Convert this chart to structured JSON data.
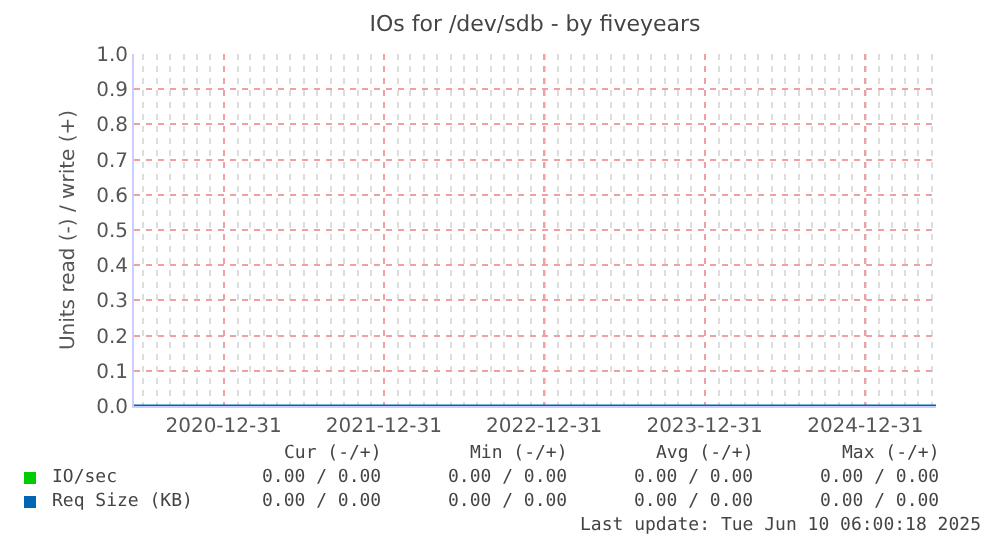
{
  "chart_data": {
    "type": "line",
    "title": "IOs for /dev/sdb - by fiveyears",
    "ylabel": "Units read (-) / write (+)",
    "x": [
      "2020-06-10",
      "2025-06-10"
    ],
    "series": [
      {
        "name": "IO/sec",
        "color": "#00cc00",
        "values": [
          null,
          null
        ]
      },
      {
        "name": "Req Size (KB)",
        "color": "#0066b3",
        "values": [
          0,
          0
        ]
      }
    ],
    "xlim": [
      "2020-06-10",
      "2025-06-10"
    ],
    "xticks": [
      "2020-12-31",
      "2021-12-31",
      "2022-12-31",
      "2023-12-31",
      "2024-12-31"
    ],
    "ylim": [
      0,
      1
    ],
    "yticks": [
      {
        "value": 0,
        "label": "0.0"
      },
      0.1,
      0.2,
      0.3,
      0.4,
      0.5,
      0.6,
      0.7,
      0.8,
      0.9,
      {
        "value": 1,
        "label": "1.0"
      }
    ],
    "grid": true,
    "legend": "bottom left",
    "marker": "none",
    "line_style": "solid",
    "annotations": [
      "Cur (-/+)",
      "Min (-/+)",
      "Avg (-/+)",
      "Max (-/+)",
      "0.00 / 0.00",
      "0.00 / 0.00",
      "0.00 / 0.00",
      "0.00 / 0.00",
      "0.00 / 0.00",
      "0.00 / 0.00",
      "0.00 / 0.00",
      "0.00 / 0.00",
      "Last update: Tue Jun 10 06:00:18 2025"
    ]
  }
}
